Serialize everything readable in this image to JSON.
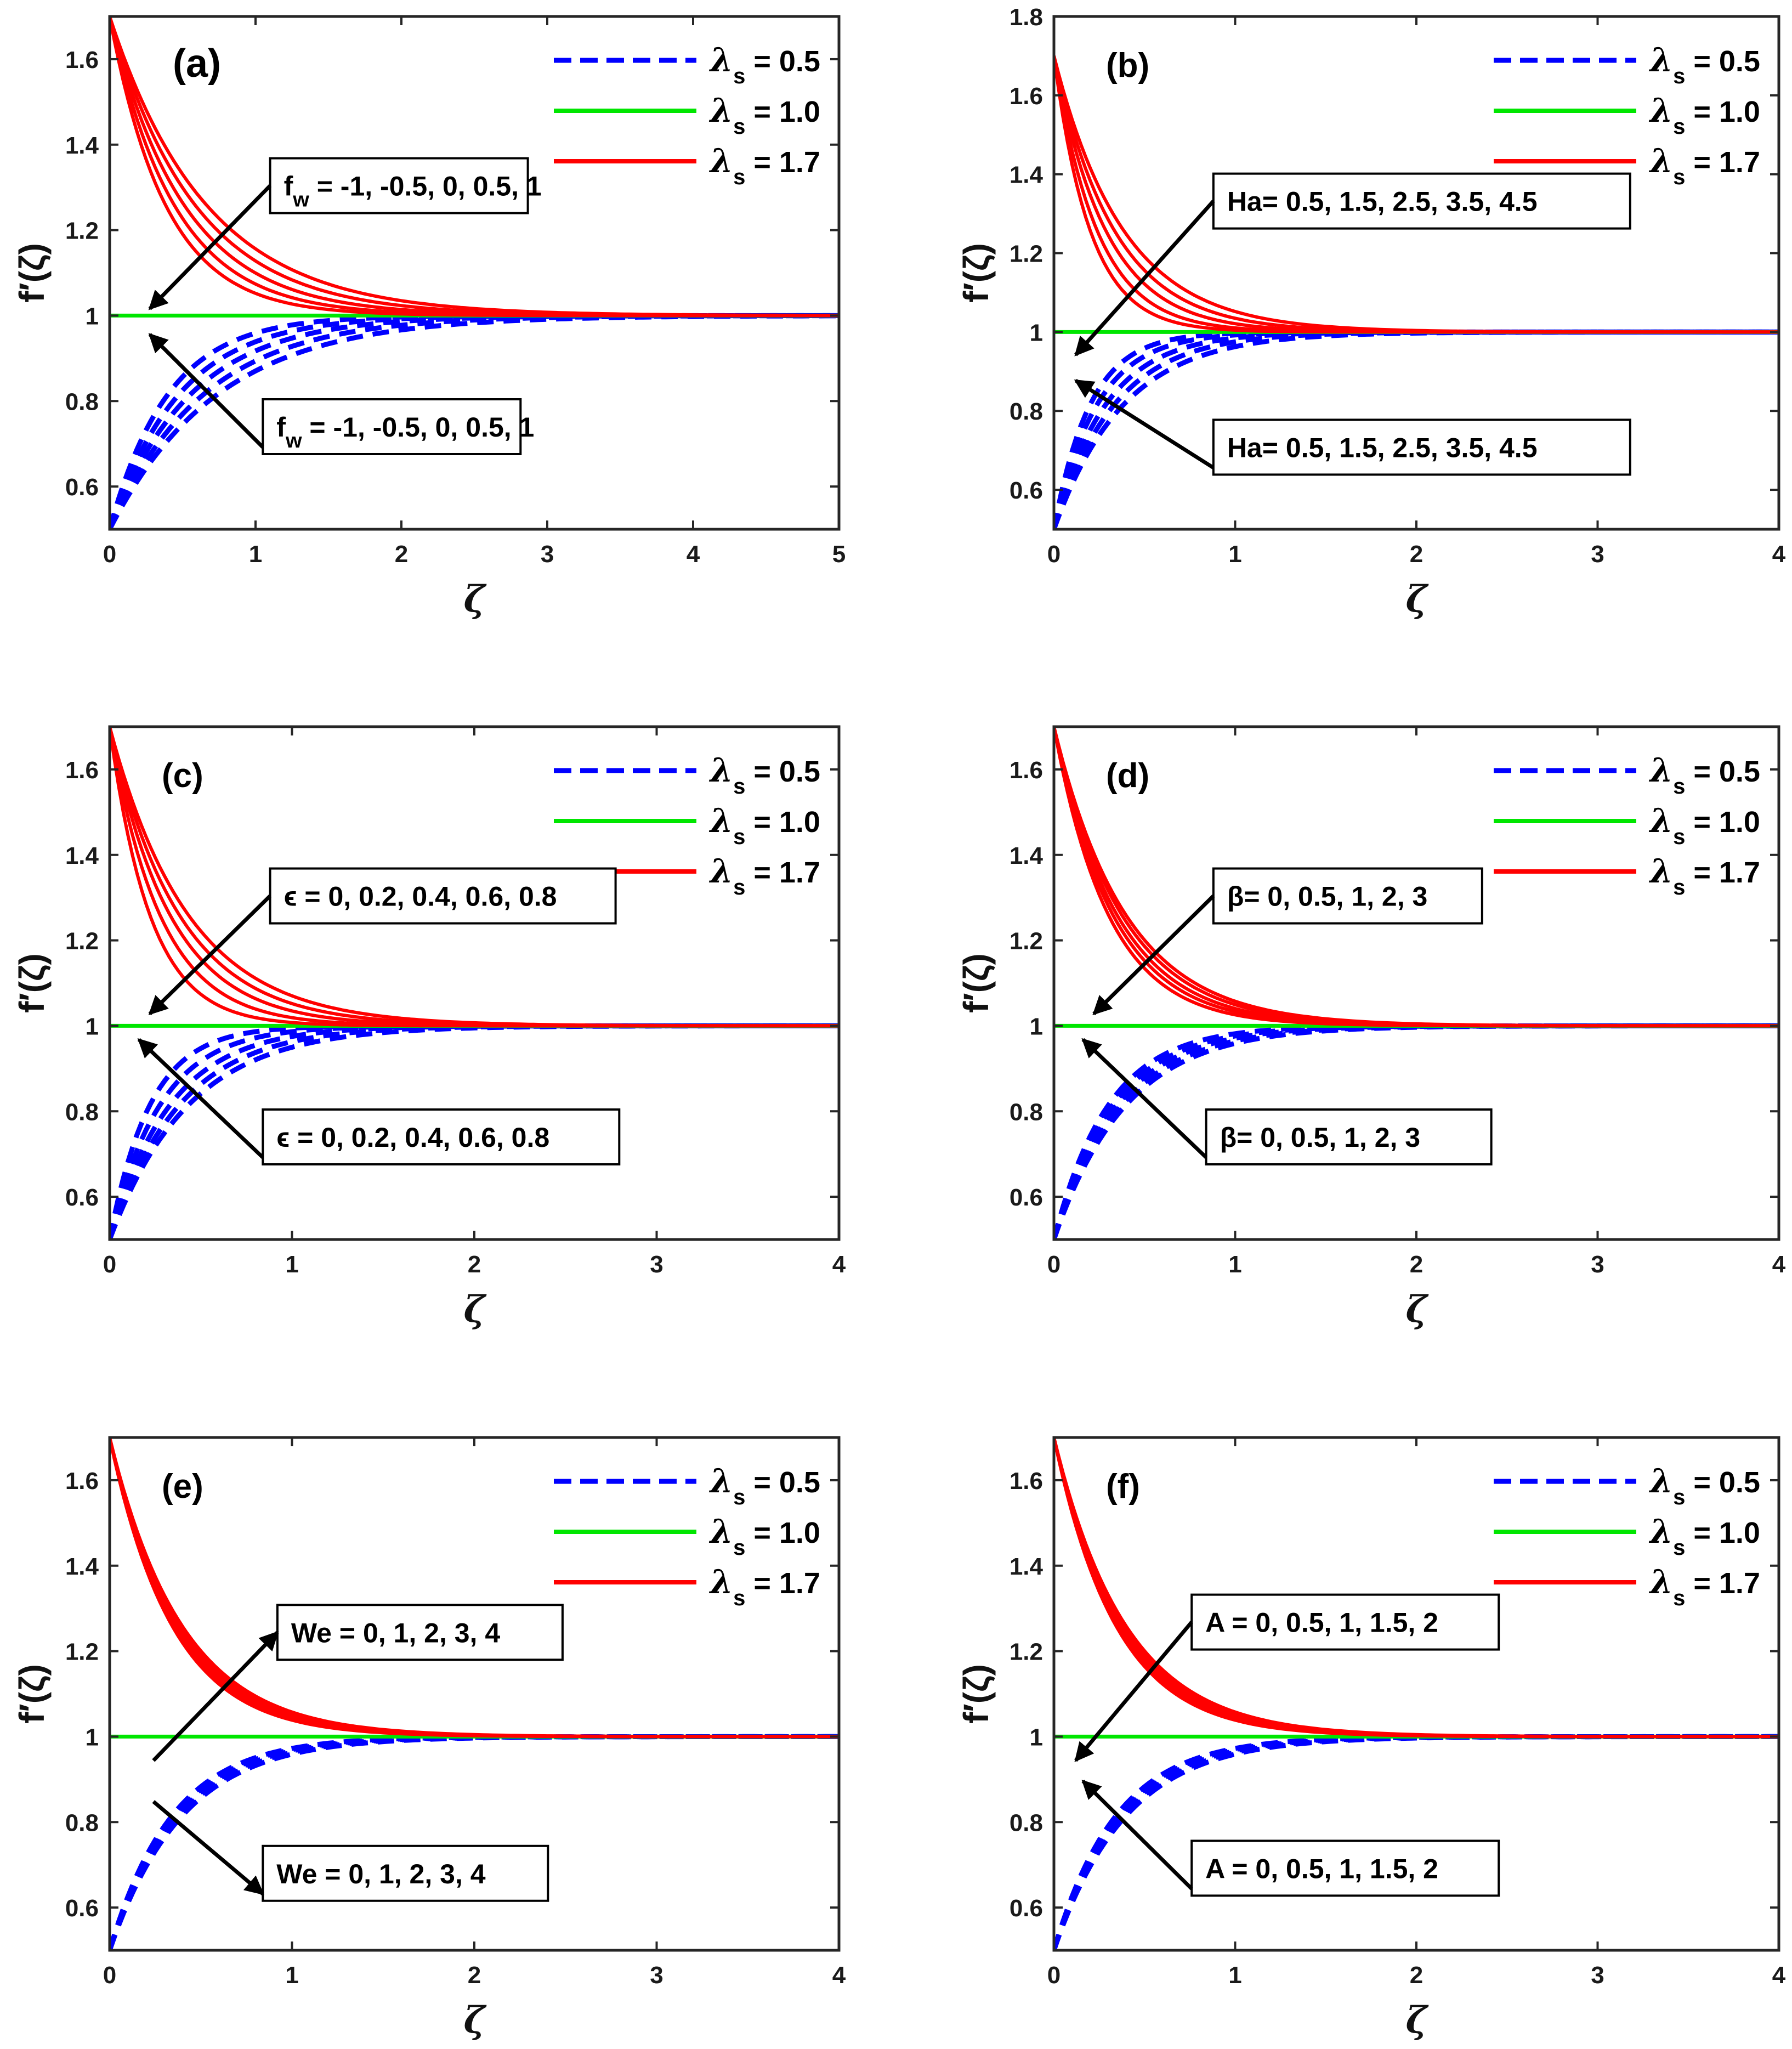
{
  "legend": [
    {
      "symbol": "λ",
      "sub": "s",
      "value": "= 0.5",
      "color": "#0000ff",
      "dash": true
    },
    {
      "symbol": "λ",
      "sub": "s",
      "value": "= 1.0",
      "color": "#00e600",
      "dash": false
    },
    {
      "symbol": "λ",
      "sub": "s",
      "value": "= 1.7",
      "color": "#ff0000",
      "dash": false
    }
  ],
  "colors": {
    "lambda_0_5": "#0000ff",
    "lambda_1_0": "#00e600",
    "lambda_1_7": "#ff0000"
  },
  "chart_data": [
    {
      "type": "line",
      "panel_label": "(a)",
      "xlabel": "ζ",
      "ylabel": "f′(ζ)",
      "xlim": [
        0,
        5
      ],
      "ylim": [
        0.5,
        1.7
      ],
      "xticks": [
        0,
        1,
        2,
        3,
        4,
        5
      ],
      "yticks": [
        0.6,
        0.8,
        1,
        1.2,
        1.4,
        1.6
      ],
      "ytick_labels": [
        "0.6",
        "0.8",
        "1",
        "1.2",
        "1.4",
        "1.6"
      ],
      "lower_value": 0.5,
      "unity_value": 1.0,
      "upper_value": 1.7,
      "decay_rates_upper": [
        2.6,
        2.25,
        1.95,
        1.7,
        1.5
      ],
      "decay_rates_lower": [
        2.5,
        2.1,
        1.8,
        1.55,
        1.35
      ],
      "annotations": [
        {
          "text": "f",
          "sub": "w",
          "rest": " = -1, -0.5, 0, 0.5, 1",
          "position": "upper",
          "arrow": "down-left"
        },
        {
          "text": "f",
          "sub": "w",
          "rest": " = -1, -0.5, 0, 0.5, 1",
          "position": "lower",
          "arrow": "up-left"
        }
      ]
    },
    {
      "type": "line",
      "panel_label": "(b)",
      "xlabel": "ζ",
      "ylabel": "f′(ζ)",
      "xlim": [
        0,
        4
      ],
      "ylim": [
        0.5,
        1.8
      ],
      "xticks": [
        0,
        1,
        2,
        3,
        4
      ],
      "yticks": [
        0.6,
        0.8,
        1,
        1.2,
        1.4,
        1.6,
        1.8
      ],
      "ytick_labels": [
        "0.6",
        "0.8",
        "1",
        "1.2",
        "1.4",
        "1.6",
        "1.8"
      ],
      "lower_value": 0.5,
      "unity_value": 1.0,
      "upper_value": 1.7,
      "decay_rates_upper": [
        5.0,
        4.2,
        3.5,
        3.0,
        2.6
      ],
      "decay_rates_lower": [
        5.0,
        4.2,
        3.5,
        3.0,
        2.6
      ],
      "annotations": [
        {
          "text": "Ha= 0.5, 1.5, 2.5, 3.5, 4.5",
          "sub": "",
          "rest": "",
          "position": "upper",
          "arrow": "down-left"
        },
        {
          "text": "Ha= 0.5, 1.5, 2.5, 3.5, 4.5",
          "sub": "",
          "rest": "",
          "position": "lower",
          "arrow": "up-left"
        }
      ]
    },
    {
      "type": "line",
      "panel_label": "(c)",
      "xlabel": "ζ",
      "ylabel": "f′(ζ)",
      "xlim": [
        0,
        4
      ],
      "ylim": [
        0.5,
        1.7
      ],
      "xticks": [
        0,
        1,
        2,
        3,
        4
      ],
      "yticks": [
        0.6,
        0.8,
        1,
        1.2,
        1.4,
        1.6
      ],
      "ytick_labels": [
        "0.6",
        "0.8",
        "1",
        "1.2",
        "1.4",
        "1.6"
      ],
      "lower_value": 0.5,
      "unity_value": 1.0,
      "upper_value": 1.7,
      "decay_rates_upper": [
        4.5,
        3.6,
        3.0,
        2.6,
        2.3
      ],
      "decay_rates_lower": [
        4.5,
        3.6,
        3.0,
        2.6,
        2.3
      ],
      "annotations": [
        {
          "text": "ϵ = 0, 0.2, 0.4, 0.6, 0.8",
          "sub": "",
          "rest": "",
          "position": "upper",
          "arrow": "down-left"
        },
        {
          "text": "ϵ = 0, 0.2, 0.4, 0.6, 0.8",
          "sub": "",
          "rest": "",
          "position": "lower",
          "arrow": "up-left"
        }
      ]
    },
    {
      "type": "line",
      "panel_label": "(d)",
      "xlabel": "ζ",
      "ylabel": "f′(ζ)",
      "xlim": [
        0,
        4
      ],
      "ylim": [
        0.5,
        1.7
      ],
      "xticks": [
        0,
        1,
        2,
        3,
        4
      ],
      "yticks": [
        0.6,
        0.8,
        1,
        1.2,
        1.4,
        1.6
      ],
      "ytick_labels": [
        "0.6",
        "0.8",
        "1",
        "1.2",
        "1.4",
        "1.6"
      ],
      "lower_value": 0.5,
      "unity_value": 1.0,
      "upper_value": 1.7,
      "decay_rates_upper": [
        3.3,
        3.05,
        2.85,
        2.65,
        2.5
      ],
      "decay_rates_lower": [
        3.3,
        3.05,
        2.85,
        2.65,
        2.5
      ],
      "annotations": [
        {
          "text": "β= 0, 0.5, 1, 2, 3",
          "sub": "",
          "rest": "",
          "position": "upper",
          "arrow": "down-left"
        },
        {
          "text": "β= 0, 0.5, 1, 2, 3",
          "sub": "",
          "rest": "",
          "position": "lower",
          "arrow": "up-left"
        }
      ]
    },
    {
      "type": "line",
      "panel_label": "(e)",
      "xlabel": "ζ",
      "ylabel": "f′(ζ)",
      "xlim": [
        0,
        4
      ],
      "ylim": [
        0.5,
        1.7
      ],
      "xticks": [
        0,
        1,
        2,
        3,
        4
      ],
      "yticks": [
        0.6,
        0.8,
        1,
        1.2,
        1.4,
        1.6
      ],
      "ytick_labels": [
        "0.6",
        "0.8",
        "1",
        "1.2",
        "1.4",
        "1.6"
      ],
      "lower_value": 0.5,
      "unity_value": 1.0,
      "upper_value": 1.7,
      "decay_rates_upper": [
        2.9,
        2.8,
        2.7,
        2.6,
        2.5
      ],
      "decay_rates_lower": [
        2.9,
        2.8,
        2.7,
        2.6,
        2.5
      ],
      "annotations": [
        {
          "text": "We = 0, 1, 2, 3, 4",
          "sub": "",
          "rest": "",
          "position": "upper",
          "arrow": "up-right"
        },
        {
          "text": "We = 0, 1, 2, 3, 4",
          "sub": "",
          "rest": "",
          "position": "lower",
          "arrow": "down-right"
        }
      ]
    },
    {
      "type": "line",
      "panel_label": "(f)",
      "xlabel": "ζ",
      "ylabel": "f′(ζ)",
      "xlim": [
        0,
        4
      ],
      "ylim": [
        0.5,
        1.7
      ],
      "xticks": [
        0,
        1,
        2,
        3,
        4
      ],
      "yticks": [
        0.6,
        0.8,
        1,
        1.2,
        1.4,
        1.6
      ],
      "ytick_labels": [
        "0.6",
        "0.8",
        "1",
        "1.2",
        "1.4",
        "1.6"
      ],
      "lower_value": 0.5,
      "unity_value": 1.0,
      "upper_value": 1.7,
      "decay_rates_upper": [
        2.9,
        2.8,
        2.7,
        2.6,
        2.5
      ],
      "decay_rates_lower": [
        2.9,
        2.8,
        2.7,
        2.6,
        2.5
      ],
      "annotations": [
        {
          "text": "A = 0, 0.5, 1, 1.5, 2",
          "sub": "",
          "rest": "",
          "position": "upper",
          "arrow": "down-left"
        },
        {
          "text": "A = 0, 0.5, 1, 1.5, 2",
          "sub": "",
          "rest": "",
          "position": "lower",
          "arrow": "up-left"
        }
      ]
    }
  ]
}
